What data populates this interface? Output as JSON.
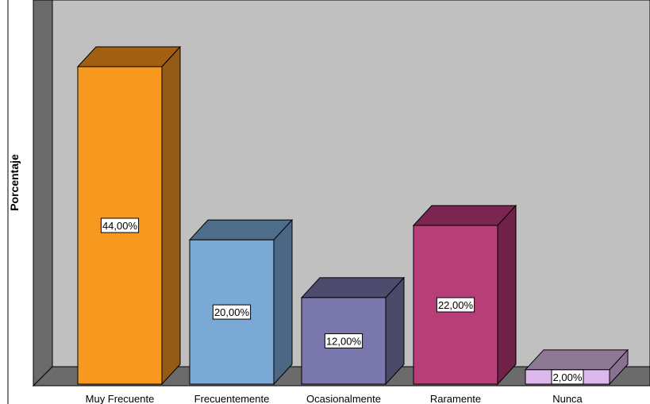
{
  "chart_data": {
    "type": "bar",
    "style": "3d",
    "ylabel": "Porcentaje",
    "xlabel": "",
    "ylim": [
      0,
      50
    ],
    "categories": [
      "Muy Frecuente",
      "Frecuentemente",
      "Ocasionalmente",
      "Raramente",
      "Nunca"
    ],
    "values": [
      44,
      20,
      12,
      22,
      2
    ],
    "value_labels": [
      "44,00%",
      "20,00%",
      "12,00%",
      "22,00%",
      "2,00%"
    ],
    "colors": {
      "front": [
        "#f7991f",
        "#7aa9d5",
        "#7977ac",
        "#b83e78",
        "#dcb8ec"
      ],
      "top": [
        "#a25f12",
        "#4d6d8a",
        "#4d4c6f",
        "#7a2651",
        "#8e7995"
      ],
      "side": [
        "#935b15",
        "#4b6784",
        "#4a4968",
        "#6f2148",
        "#8a7194"
      ],
      "wall_back": "#c0c0c0",
      "wall_left": "#6b6b6b",
      "floor": "#6b6b6b"
    },
    "grid": false,
    "legend": "none"
  }
}
